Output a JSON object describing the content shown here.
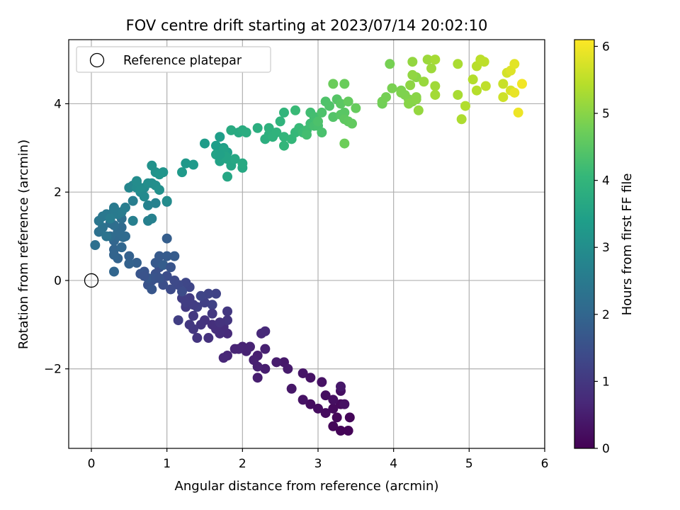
{
  "chart_data": {
    "type": "scatter",
    "title": "FOV centre drift starting at 2023/07/14 20:02:10",
    "xlabel": "Angular distance from reference (arcmin)",
    "ylabel": "Rotation from reference (arcmin)",
    "xlim": [
      -0.3,
      6.0
    ],
    "ylim": [
      -3.8,
      5.45
    ],
    "x_ticks": [
      0,
      1,
      2,
      3,
      4,
      5,
      6
    ],
    "y_ticks": [
      -2,
      0,
      2,
      4
    ],
    "x_tick_labels": [
      "0",
      "1",
      "2",
      "3",
      "4",
      "5",
      "6"
    ],
    "y_tick_labels": [
      "−2",
      "0",
      "2",
      "4"
    ],
    "grid": true,
    "legend": {
      "placement": "top-left",
      "label": "Reference platepar"
    },
    "reference_point": {
      "x": 0,
      "y": 0
    },
    "colorbar": {
      "label": "Hours from first FF file",
      "range": [
        0,
        6.1
      ],
      "ticks": [
        0,
        1,
        2,
        3,
        4,
        5,
        6
      ],
      "tick_labels": [
        "0",
        "1",
        "2",
        "3",
        "4",
        "5",
        "6"
      ],
      "colormap": "viridis"
    },
    "colormap_stops": [
      "#440154",
      "#482878",
      "#3e4989",
      "#31688e",
      "#26828e",
      "#1f9e89",
      "#35b779",
      "#6ece58",
      "#b5de2b",
      "#fde725"
    ],
    "points": [
      {
        "x": 3.3,
        "y": -3.4,
        "h": 0.05
      },
      {
        "x": 3.4,
        "y": -3.4,
        "h": 0.05
      },
      {
        "x": 3.42,
        "y": -3.1,
        "h": 0.08
      },
      {
        "x": 3.2,
        "y": -3.3,
        "h": 0.1
      },
      {
        "x": 3.25,
        "y": -3.1,
        "h": 0.12
      },
      {
        "x": 3.3,
        "y": -2.8,
        "h": 0.15
      },
      {
        "x": 3.2,
        "y": -2.9,
        "h": 0.15
      },
      {
        "x": 3.1,
        "y": -3.0,
        "h": 0.18
      },
      {
        "x": 3.0,
        "y": -2.9,
        "h": 0.2
      },
      {
        "x": 2.9,
        "y": -2.8,
        "h": 0.2
      },
      {
        "x": 3.1,
        "y": -2.6,
        "h": 0.22
      },
      {
        "x": 3.2,
        "y": -2.7,
        "h": 0.25
      },
      {
        "x": 3.3,
        "y": -2.5,
        "h": 0.25
      },
      {
        "x": 3.35,
        "y": -2.8,
        "h": 0.28
      },
      {
        "x": 3.05,
        "y": -2.3,
        "h": 0.3
      },
      {
        "x": 2.8,
        "y": -2.7,
        "h": 0.3
      },
      {
        "x": 2.9,
        "y": -2.2,
        "h": 0.32
      },
      {
        "x": 2.8,
        "y": -2.1,
        "h": 0.35
      },
      {
        "x": 2.65,
        "y": -2.45,
        "h": 0.38
      },
      {
        "x": 3.3,
        "y": -2.4,
        "h": 0.4
      },
      {
        "x": 2.55,
        "y": -1.85,
        "h": 0.42
      },
      {
        "x": 2.6,
        "y": -2.0,
        "h": 0.45
      },
      {
        "x": 2.45,
        "y": -1.85,
        "h": 0.48
      },
      {
        "x": 2.3,
        "y": -2.0,
        "h": 0.5
      },
      {
        "x": 2.2,
        "y": -1.7,
        "h": 0.52
      },
      {
        "x": 2.15,
        "y": -1.8,
        "h": 0.55
      },
      {
        "x": 2.3,
        "y": -1.55,
        "h": 0.55
      },
      {
        "x": 2.05,
        "y": -1.6,
        "h": 0.58
      },
      {
        "x": 2.0,
        "y": -1.5,
        "h": 0.6
      },
      {
        "x": 1.9,
        "y": -1.55,
        "h": 0.62
      },
      {
        "x": 1.8,
        "y": -1.7,
        "h": 0.65
      },
      {
        "x": 1.75,
        "y": -1.75,
        "h": 0.68
      },
      {
        "x": 2.25,
        "y": -1.2,
        "h": 0.7
      },
      {
        "x": 2.3,
        "y": -1.15,
        "h": 0.72
      },
      {
        "x": 2.2,
        "y": -1.95,
        "h": 0.55
      },
      {
        "x": 2.2,
        "y": -2.2,
        "h": 0.5
      },
      {
        "x": 2.1,
        "y": -1.5,
        "h": 0.6
      },
      {
        "x": 1.95,
        "y": -1.55,
        "h": 0.62
      },
      {
        "x": 1.8,
        "y": -1.2,
        "h": 0.75
      },
      {
        "x": 1.75,
        "y": -1.05,
        "h": 0.78
      },
      {
        "x": 1.7,
        "y": -1.2,
        "h": 0.8
      },
      {
        "x": 1.65,
        "y": -1.1,
        "h": 0.82
      },
      {
        "x": 1.6,
        "y": -1.0,
        "h": 0.85
      },
      {
        "x": 1.55,
        "y": -1.3,
        "h": 0.88
      },
      {
        "x": 1.5,
        "y": -0.9,
        "h": 0.9
      },
      {
        "x": 1.45,
        "y": -1.0,
        "h": 0.92
      },
      {
        "x": 1.4,
        "y": -1.3,
        "h": 0.95
      },
      {
        "x": 1.35,
        "y": -1.1,
        "h": 0.98
      },
      {
        "x": 1.3,
        "y": -1.0,
        "h": 1.0
      },
      {
        "x": 1.35,
        "y": -0.8,
        "h": 1.02
      },
      {
        "x": 1.25,
        "y": -0.6,
        "h": 1.05
      },
      {
        "x": 1.3,
        "y": -0.4,
        "h": 1.08
      },
      {
        "x": 1.2,
        "y": -0.4,
        "h": 1.1
      },
      {
        "x": 1.15,
        "y": -0.9,
        "h": 1.12
      },
      {
        "x": 1.4,
        "y": -0.6,
        "h": 1.15
      },
      {
        "x": 1.5,
        "y": -0.5,
        "h": 1.18
      },
      {
        "x": 1.6,
        "y": -0.55,
        "h": 1.2
      },
      {
        "x": 1.65,
        "y": -0.3,
        "h": 1.22
      },
      {
        "x": 1.55,
        "y": -0.3,
        "h": 1.25
      },
      {
        "x": 1.45,
        "y": -0.35,
        "h": 1.28
      },
      {
        "x": 1.3,
        "y": -0.15,
        "h": 1.3
      },
      {
        "x": 1.25,
        "y": -0.05,
        "h": 1.32
      },
      {
        "x": 1.15,
        "y": -0.1,
        "h": 1.35
      },
      {
        "x": 1.1,
        "y": 0.0,
        "h": 1.38
      },
      {
        "x": 1.05,
        "y": -0.2,
        "h": 1.4
      },
      {
        "x": 1.2,
        "y": -0.25,
        "h": 1.42
      },
      {
        "x": 1.8,
        "y": -0.7,
        "h": 1.0
      },
      {
        "x": 1.8,
        "y": -0.9,
        "h": 0.95
      },
      {
        "x": 1.7,
        "y": -0.95,
        "h": 0.9
      },
      {
        "x": 1.6,
        "y": -0.75,
        "h": 1.0
      },
      {
        "x": 1.35,
        "y": -0.55,
        "h": 1.1
      },
      {
        "x": 1.25,
        "y": -0.5,
        "h": 1.1
      },
      {
        "x": 1.0,
        "y": 0.1,
        "h": 1.45
      },
      {
        "x": 0.95,
        "y": -0.1,
        "h": 1.48
      },
      {
        "x": 0.9,
        "y": 0.3,
        "h": 1.5
      },
      {
        "x": 0.85,
        "y": 0.15,
        "h": 1.52
      },
      {
        "x": 0.8,
        "y": 0.0,
        "h": 1.55
      },
      {
        "x": 0.75,
        "y": -0.1,
        "h": 1.58
      },
      {
        "x": 0.7,
        "y": 0.2,
        "h": 1.6
      },
      {
        "x": 0.65,
        "y": 0.15,
        "h": 1.62
      },
      {
        "x": 0.8,
        "y": -0.2,
        "h": 1.65
      },
      {
        "x": 0.75,
        "y": 0.05,
        "h": 1.68
      },
      {
        "x": 0.85,
        "y": 0.4,
        "h": 1.7
      },
      {
        "x": 0.9,
        "y": 0.55,
        "h": 1.72
      },
      {
        "x": 1.0,
        "y": 0.55,
        "h": 1.75
      },
      {
        "x": 1.1,
        "y": 0.55,
        "h": 1.78
      },
      {
        "x": 0.95,
        "y": 0.35,
        "h": 1.8
      },
      {
        "x": 1.0,
        "y": 0.95,
        "h": 1.82
      },
      {
        "x": 0.85,
        "y": 0.05,
        "h": 1.6
      },
      {
        "x": 0.7,
        "y": 0.1,
        "h": 1.58
      },
      {
        "x": 0.9,
        "y": 0.05,
        "h": 1.55
      },
      {
        "x": 1.05,
        "y": 0.3,
        "h": 1.6
      },
      {
        "x": 0.6,
        "y": 0.4,
        "h": 1.85
      },
      {
        "x": 0.5,
        "y": 0.55,
        "h": 1.88
      },
      {
        "x": 0.5,
        "y": 0.38,
        "h": 1.9
      },
      {
        "x": 0.35,
        "y": 0.5,
        "h": 1.92
      },
      {
        "x": 0.3,
        "y": 0.7,
        "h": 1.95
      },
      {
        "x": 0.3,
        "y": 0.2,
        "h": 1.98
      },
      {
        "x": 0.3,
        "y": 0.9,
        "h": 2.0
      },
      {
        "x": 0.4,
        "y": 0.75,
        "h": 2.02
      },
      {
        "x": 0.35,
        "y": 1.0,
        "h": 2.05
      },
      {
        "x": 0.45,
        "y": 1.0,
        "h": 2.08
      },
      {
        "x": 0.4,
        "y": 1.2,
        "h": 2.1
      },
      {
        "x": 0.35,
        "y": 1.1,
        "h": 2.12
      },
      {
        "x": 0.25,
        "y": 1.0,
        "h": 2.15
      },
      {
        "x": 0.3,
        "y": 1.25,
        "h": 2.18
      },
      {
        "x": 0.25,
        "y": 1.3,
        "h": 2.2
      },
      {
        "x": 0.4,
        "y": 1.4,
        "h": 2.22
      },
      {
        "x": 0.05,
        "y": 0.8,
        "h": 2.25
      },
      {
        "x": 0.1,
        "y": 1.1,
        "h": 2.28
      },
      {
        "x": 0.15,
        "y": 1.2,
        "h": 2.3
      },
      {
        "x": 0.2,
        "y": 1.0,
        "h": 2.32
      },
      {
        "x": 0.42,
        "y": 0.98,
        "h": 2.1
      },
      {
        "x": 0.3,
        "y": 0.58,
        "h": 1.95
      },
      {
        "x": 0.1,
        "y": 1.35,
        "h": 2.4
      },
      {
        "x": 0.15,
        "y": 1.45,
        "h": 2.42
      },
      {
        "x": 0.2,
        "y": 1.5,
        "h": 2.45
      },
      {
        "x": 0.3,
        "y": 1.6,
        "h": 2.48
      },
      {
        "x": 0.35,
        "y": 1.5,
        "h": 2.5
      },
      {
        "x": 0.4,
        "y": 1.55,
        "h": 2.52
      },
      {
        "x": 0.25,
        "y": 1.4,
        "h": 2.55
      },
      {
        "x": 0.45,
        "y": 1.65,
        "h": 2.58
      },
      {
        "x": 0.55,
        "y": 1.8,
        "h": 2.6
      },
      {
        "x": 0.55,
        "y": 1.35,
        "h": 2.62
      },
      {
        "x": 0.75,
        "y": 1.35,
        "h": 2.65
      },
      {
        "x": 0.8,
        "y": 1.4,
        "h": 2.68
      },
      {
        "x": 0.75,
        "y": 1.7,
        "h": 2.7
      },
      {
        "x": 0.85,
        "y": 1.75,
        "h": 2.72
      },
      {
        "x": 1.0,
        "y": 1.78,
        "h": 2.75
      },
      {
        "x": 0.3,
        "y": 1.65,
        "h": 2.5
      },
      {
        "x": 0.5,
        "y": 2.1,
        "h": 2.8
      },
      {
        "x": 0.55,
        "y": 2.15,
        "h": 2.82
      },
      {
        "x": 0.6,
        "y": 2.2,
        "h": 2.85
      },
      {
        "x": 0.65,
        "y": 2.0,
        "h": 2.88
      },
      {
        "x": 0.7,
        "y": 2.1,
        "h": 2.9
      },
      {
        "x": 0.6,
        "y": 2.1,
        "h": 2.92
      },
      {
        "x": 0.6,
        "y": 2.25,
        "h": 2.95
      },
      {
        "x": 0.65,
        "y": 2.05,
        "h": 2.98
      },
      {
        "x": 0.8,
        "y": 2.2,
        "h": 3.0
      },
      {
        "x": 0.85,
        "y": 2.15,
        "h": 3.02
      },
      {
        "x": 0.9,
        "y": 2.05,
        "h": 3.05
      },
      {
        "x": 1.0,
        "y": 1.8,
        "h": 2.95
      },
      {
        "x": 0.8,
        "y": 2.6,
        "h": 3.1
      },
      {
        "x": 0.85,
        "y": 2.45,
        "h": 3.12
      },
      {
        "x": 0.95,
        "y": 2.45,
        "h": 3.15
      },
      {
        "x": 0.9,
        "y": 2.4,
        "h": 3.18
      },
      {
        "x": 0.7,
        "y": 1.9,
        "h": 2.9
      },
      {
        "x": 0.75,
        "y": 2.2,
        "h": 3.0
      },
      {
        "x": 1.25,
        "y": 2.65,
        "h": 3.25
      },
      {
        "x": 1.35,
        "y": 2.62,
        "h": 3.28
      },
      {
        "x": 1.2,
        "y": 2.45,
        "h": 3.3
      },
      {
        "x": 1.5,
        "y": 3.1,
        "h": 3.35
      },
      {
        "x": 1.65,
        "y": 3.05,
        "h": 3.38
      },
      {
        "x": 1.7,
        "y": 3.25,
        "h": 3.4
      },
      {
        "x": 1.75,
        "y": 3.0,
        "h": 3.42
      },
      {
        "x": 1.8,
        "y": 2.9,
        "h": 3.45
      },
      {
        "x": 1.75,
        "y": 2.85,
        "h": 3.48
      },
      {
        "x": 1.7,
        "y": 2.7,
        "h": 3.5
      },
      {
        "x": 1.65,
        "y": 2.85,
        "h": 3.52
      },
      {
        "x": 1.8,
        "y": 2.75,
        "h": 3.55
      },
      {
        "x": 1.85,
        "y": 2.6,
        "h": 3.58
      },
      {
        "x": 1.8,
        "y": 2.35,
        "h": 3.6
      },
      {
        "x": 1.9,
        "y": 2.75,
        "h": 3.62
      },
      {
        "x": 2.0,
        "y": 2.55,
        "h": 3.65
      },
      {
        "x": 2.0,
        "y": 2.65,
        "h": 3.68
      },
      {
        "x": 1.95,
        "y": 3.35,
        "h": 3.7
      },
      {
        "x": 1.85,
        "y": 3.4,
        "h": 3.72
      },
      {
        "x": 2.0,
        "y": 3.4,
        "h": 3.75
      },
      {
        "x": 2.05,
        "y": 3.35,
        "h": 3.78
      },
      {
        "x": 1.75,
        "y": 2.95,
        "h": 3.5
      },
      {
        "x": 1.78,
        "y": 2.8,
        "h": 3.55
      },
      {
        "x": 1.7,
        "y": 2.85,
        "h": 3.48
      },
      {
        "x": 2.2,
        "y": 3.45,
        "h": 3.8
      },
      {
        "x": 2.3,
        "y": 3.2,
        "h": 3.82
      },
      {
        "x": 2.35,
        "y": 3.3,
        "h": 3.85
      },
      {
        "x": 2.35,
        "y": 3.45,
        "h": 3.88
      },
      {
        "x": 2.4,
        "y": 3.25,
        "h": 3.9
      },
      {
        "x": 2.45,
        "y": 3.35,
        "h": 3.92
      },
      {
        "x": 2.5,
        "y": 3.6,
        "h": 3.95
      },
      {
        "x": 2.55,
        "y": 3.8,
        "h": 3.98
      },
      {
        "x": 2.55,
        "y": 3.25,
        "h": 4.0
      },
      {
        "x": 2.55,
        "y": 3.05,
        "h": 4.02
      },
      {
        "x": 2.65,
        "y": 3.2,
        "h": 4.05
      },
      {
        "x": 2.7,
        "y": 3.35,
        "h": 4.08
      },
      {
        "x": 2.75,
        "y": 3.45,
        "h": 4.1
      },
      {
        "x": 2.7,
        "y": 3.85,
        "h": 4.12
      },
      {
        "x": 2.8,
        "y": 3.35,
        "h": 4.15
      },
      {
        "x": 2.85,
        "y": 3.4,
        "h": 4.18
      },
      {
        "x": 2.9,
        "y": 3.55,
        "h": 4.2
      },
      {
        "x": 2.9,
        "y": 3.8,
        "h": 4.22
      },
      {
        "x": 2.95,
        "y": 3.7,
        "h": 4.25
      },
      {
        "x": 2.95,
        "y": 3.5,
        "h": 4.28
      },
      {
        "x": 3.0,
        "y": 3.5,
        "h": 4.3
      },
      {
        "x": 3.05,
        "y": 3.35,
        "h": 4.32
      },
      {
        "x": 3.05,
        "y": 3.8,
        "h": 4.35
      },
      {
        "x": 3.1,
        "y": 4.05,
        "h": 4.38
      },
      {
        "x": 3.15,
        "y": 3.95,
        "h": 4.4
      },
      {
        "x": 3.2,
        "y": 3.7,
        "h": 4.42
      },
      {
        "x": 3.25,
        "y": 4.1,
        "h": 4.45
      },
      {
        "x": 3.3,
        "y": 3.75,
        "h": 4.48
      },
      {
        "x": 3.35,
        "y": 3.8,
        "h": 4.5
      },
      {
        "x": 3.3,
        "y": 4.0,
        "h": 4.52
      },
      {
        "x": 3.35,
        "y": 3.65,
        "h": 4.55
      },
      {
        "x": 3.4,
        "y": 3.6,
        "h": 4.58
      },
      {
        "x": 3.45,
        "y": 3.55,
        "h": 4.6
      },
      {
        "x": 3.4,
        "y": 4.05,
        "h": 4.62
      },
      {
        "x": 3.5,
        "y": 3.9,
        "h": 4.65
      },
      {
        "x": 3.35,
        "y": 4.45,
        "h": 4.68
      },
      {
        "x": 3.2,
        "y": 4.45,
        "h": 4.7
      },
      {
        "x": 3.35,
        "y": 3.1,
        "h": 4.72
      },
      {
        "x": 3.0,
        "y": 3.6,
        "h": 4.35
      },
      {
        "x": 2.85,
        "y": 3.3,
        "h": 4.25
      },
      {
        "x": 3.85,
        "y": 4.0,
        "h": 4.75
      },
      {
        "x": 3.85,
        "y": 4.05,
        "h": 4.78
      },
      {
        "x": 3.9,
        "y": 4.15,
        "h": 4.8
      },
      {
        "x": 3.95,
        "y": 4.9,
        "h": 4.82
      },
      {
        "x": 3.98,
        "y": 4.35,
        "h": 4.85
      },
      {
        "x": 4.1,
        "y": 4.3,
        "h": 4.88
      },
      {
        "x": 4.15,
        "y": 4.2,
        "h": 4.9
      },
      {
        "x": 4.2,
        "y": 4.1,
        "h": 4.92
      },
      {
        "x": 4.25,
        "y": 4.05,
        "h": 4.95
      },
      {
        "x": 4.2,
        "y": 4.0,
        "h": 4.98
      },
      {
        "x": 4.3,
        "y": 4.15,
        "h": 5.0
      },
      {
        "x": 4.3,
        "y": 4.6,
        "h": 5.02
      },
      {
        "x": 4.22,
        "y": 4.42,
        "h": 5.05
      },
      {
        "x": 4.25,
        "y": 4.65,
        "h": 5.08
      },
      {
        "x": 4.25,
        "y": 4.95,
        "h": 5.1
      },
      {
        "x": 4.33,
        "y": 3.85,
        "h": 5.12
      },
      {
        "x": 4.4,
        "y": 4.5,
        "h": 5.15
      },
      {
        "x": 4.45,
        "y": 5.0,
        "h": 5.18
      },
      {
        "x": 4.5,
        "y": 4.8,
        "h": 5.2
      },
      {
        "x": 4.55,
        "y": 4.4,
        "h": 5.22
      },
      {
        "x": 4.55,
        "y": 4.2,
        "h": 5.25
      },
      {
        "x": 4.55,
        "y": 5.0,
        "h": 5.28
      },
      {
        "x": 4.85,
        "y": 4.2,
        "h": 5.3
      },
      {
        "x": 4.85,
        "y": 4.9,
        "h": 5.32
      },
      {
        "x": 4.9,
        "y": 3.65,
        "h": 5.35
      },
      {
        "x": 4.95,
        "y": 3.95,
        "h": 5.38
      },
      {
        "x": 5.05,
        "y": 4.55,
        "h": 5.4
      },
      {
        "x": 5.1,
        "y": 4.3,
        "h": 5.42
      },
      {
        "x": 5.1,
        "y": 4.85,
        "h": 5.45
      },
      {
        "x": 5.15,
        "y": 5.0,
        "h": 5.48
      },
      {
        "x": 5.2,
        "y": 4.95,
        "h": 5.5
      },
      {
        "x": 5.22,
        "y": 4.4,
        "h": 5.52
      },
      {
        "x": 5.45,
        "y": 4.45,
        "h": 5.6
      },
      {
        "x": 5.45,
        "y": 4.15,
        "h": 5.65
      },
      {
        "x": 5.5,
        "y": 4.7,
        "h": 5.7
      },
      {
        "x": 5.55,
        "y": 4.3,
        "h": 5.75
      },
      {
        "x": 5.55,
        "y": 4.75,
        "h": 5.8
      },
      {
        "x": 5.6,
        "y": 4.9,
        "h": 5.85
      },
      {
        "x": 5.6,
        "y": 4.25,
        "h": 5.9
      },
      {
        "x": 5.65,
        "y": 3.8,
        "h": 5.95
      },
      {
        "x": 5.7,
        "y": 4.45,
        "h": 6.0
      },
      {
        "x": 4.1,
        "y": 4.25,
        "h": 4.9
      },
      {
        "x": 4.3,
        "y": 4.1,
        "h": 5.0
      }
    ]
  }
}
